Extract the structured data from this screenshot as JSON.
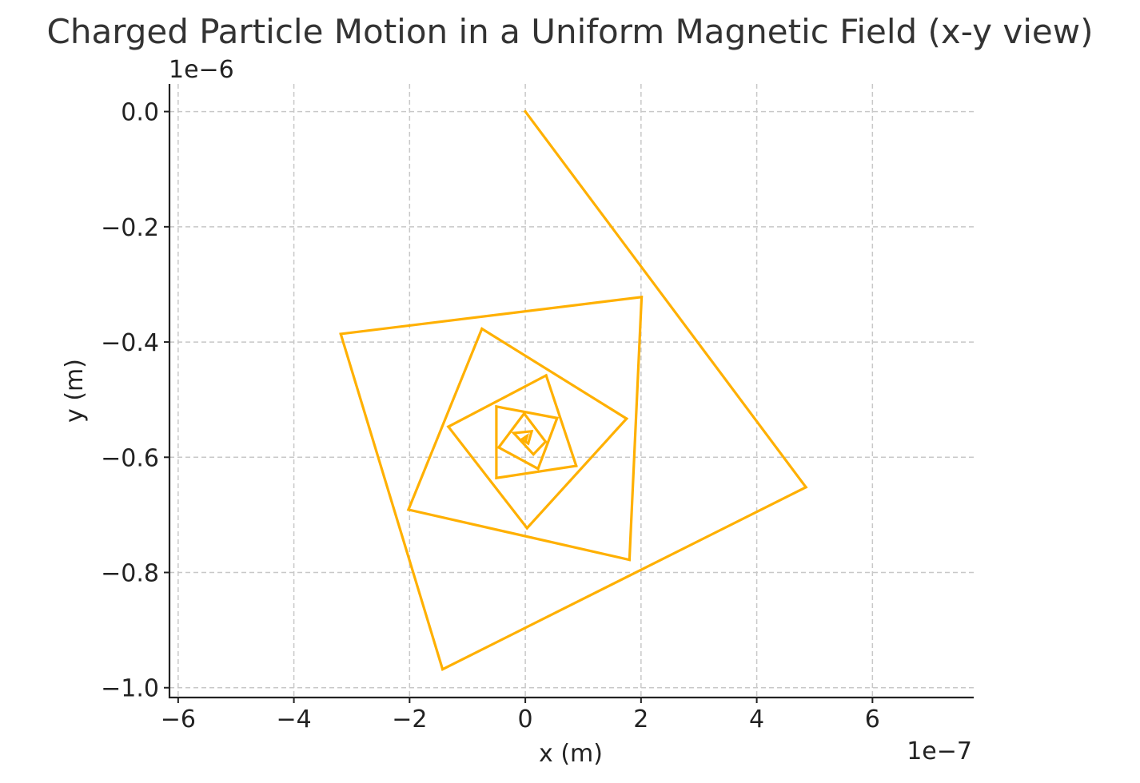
{
  "chart_data": {
    "type": "line",
    "title": "Charged Particle Motion in a Uniform Magnetic Field (x-y view)",
    "xlabel": "x (m)",
    "ylabel": "y (m)",
    "x_offset_text": "1e−7",
    "y_offset_text": "1e−6",
    "xlim": [
      -6.15e-07,
      7.75e-07
    ],
    "ylim": [
      -1.017e-06,
      4.8e-08
    ],
    "xticks": [
      -6e-07,
      -4e-07,
      -2e-07,
      0,
      2e-07,
      4e-07,
      6e-07
    ],
    "yticks": [
      0,
      -2e-07,
      -4e-07,
      -6e-07,
      -8e-07,
      -1e-06
    ],
    "xtick_labels": [
      "−6",
      "−4",
      "−2",
      "0",
      "2",
      "4",
      "6"
    ],
    "ytick_labels": [
      "0.0",
      "−0.2",
      "−0.4",
      "−0.6",
      "−0.8",
      "−1.0"
    ],
    "grid": true,
    "series": [
      {
        "color": "#FFB000",
        "x": [
          0,
          4.85e-07,
          -1.43e-07,
          -3.19e-07,
          2.01e-07,
          1.8e-07,
          -2.02e-07,
          -7.5e-08,
          1.75e-07,
          3e-09,
          -1.33e-07,
          3.6e-08,
          8.8e-08,
          -5e-08,
          -5e-08,
          5.5e-08,
          2.2e-08,
          -4.6e-08,
          -2e-09,
          3.5e-08,
          1.4e-08,
          -2e-08,
          1.1e-08,
          5e-09,
          -6e-09,
          3e-09,
          1e-09
        ],
        "y": [
          0,
          -6.52e-07,
          -9.68e-07,
          -3.86e-07,
          -3.22e-07,
          -7.78e-07,
          -6.91e-07,
          -3.77e-07,
          -5.33e-07,
          -7.23e-07,
          -5.47e-07,
          -4.58e-07,
          -6.15e-07,
          -6.36e-07,
          -5.12e-07,
          -5.32e-07,
          -6.2e-07,
          -5.83e-07,
          -5.24e-07,
          -5.73e-07,
          -5.95e-07,
          -5.58e-07,
          -5.55e-07,
          -5.76e-07,
          -5.69e-07,
          -5.63e-07,
          -5.7e-07
        ]
      }
    ]
  }
}
